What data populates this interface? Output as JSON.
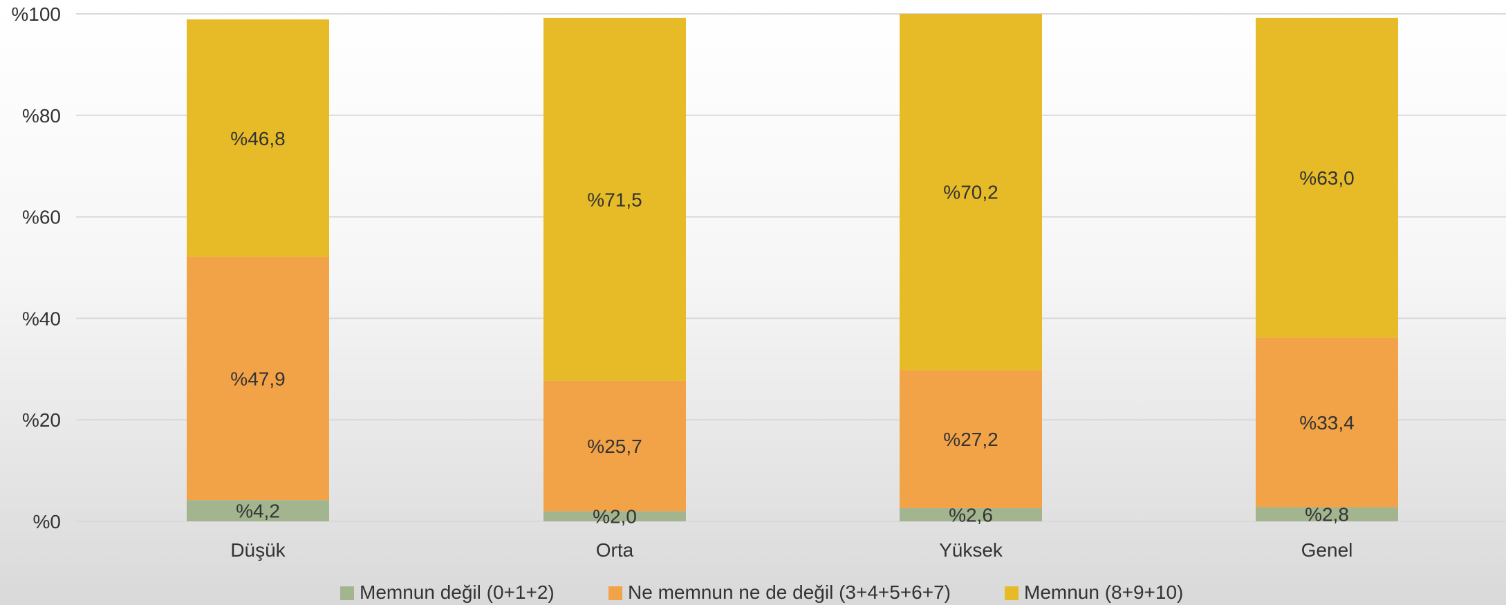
{
  "chart_data": {
    "type": "bar",
    "stacked": true,
    "categories": [
      "Düşük",
      "Orta",
      "Yüksek",
      "Genel"
    ],
    "series": [
      {
        "name": "Memnun değil (0+1+2)",
        "values": [
          4.2,
          2.0,
          2.6,
          2.8
        ],
        "labels": [
          "%4,2",
          "%2,0",
          "%2,6",
          "%2,8"
        ],
        "color": "#a3b58f"
      },
      {
        "name": "Ne memnun ne de değil (3+4+5+6+7)",
        "values": [
          47.9,
          25.7,
          27.2,
          33.4
        ],
        "labels": [
          "%47,9",
          "%25,7",
          "%27,2",
          "%33,4"
        ],
        "color": "#f2a347"
      },
      {
        "name": "Memnun (8+9+10)",
        "values": [
          46.8,
          71.5,
          70.2,
          63.0
        ],
        "labels": [
          "%46,8",
          "%71,5",
          "%70,2",
          "%63,0"
        ],
        "color": "#e6bb27"
      }
    ],
    "yticks": [
      "%0",
      "%20",
      "%40",
      "%60",
      "%80",
      "%100"
    ],
    "ylim": [
      0,
      100
    ],
    "grid": true,
    "legend": "bottom",
    "title": "",
    "xlabel": "",
    "ylabel": ""
  }
}
